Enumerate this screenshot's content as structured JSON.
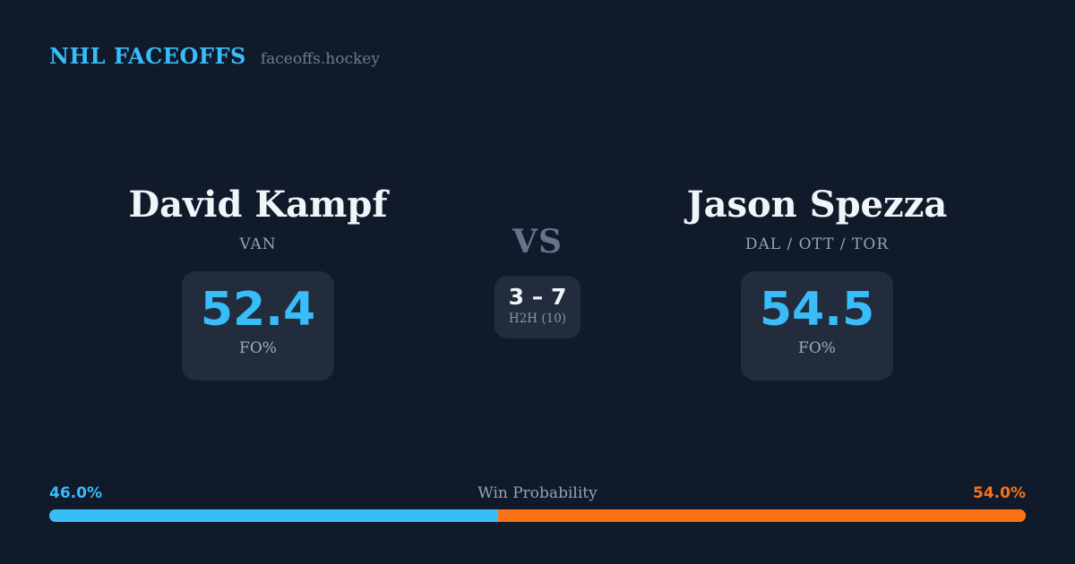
{
  "header": {
    "brand": "NHL FACEOFFS",
    "site": "faceoffs.hockey"
  },
  "players": {
    "left": {
      "name": "David Kampf",
      "teams": "VAN",
      "stat_value": "52.4",
      "stat_label": "FO%"
    },
    "right": {
      "name": "Jason Spezza",
      "teams": "DAL / OTT / TOR",
      "stat_value": "54.5",
      "stat_label": "FO%"
    }
  },
  "center": {
    "vs_label": "VS",
    "h2h_score": "3 – 7",
    "h2h_label": "H2H (10)"
  },
  "win_probability": {
    "title": "Win Probability",
    "left_pct_label": "46.0%",
    "right_pct_label": "54.0%",
    "left_value": 46.0,
    "right_value": 54.0
  },
  "colors": {
    "background": "#111a2b",
    "card_background": "#222c3c",
    "accent_blue": "#38bdf8",
    "accent_orange": "#f97316",
    "text_primary": "#f1f5f9",
    "text_muted": "#94a3b8"
  }
}
